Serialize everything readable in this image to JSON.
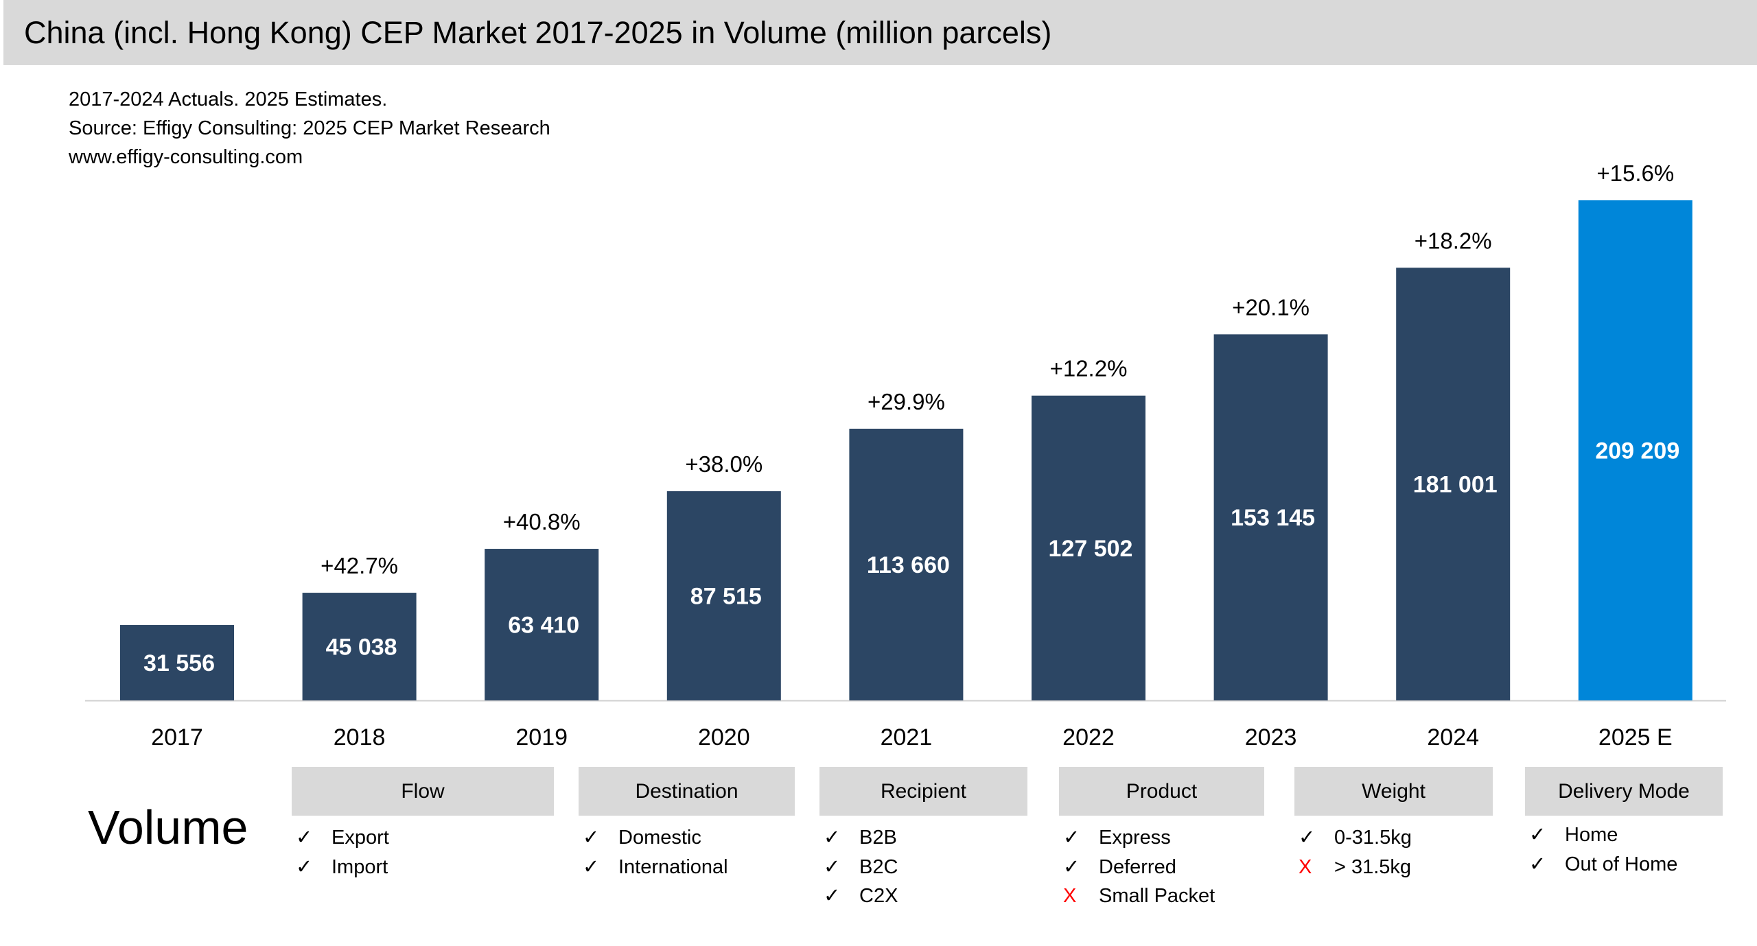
{
  "header": {
    "title": "China (incl. Hong Kong) CEP Market 2017-2025 in Volume (million parcels)",
    "notes": [
      "2017-2024 Actuals. 2025 Estimates.",
      "Source: Effigy Consulting: 2025 CEP Market Research",
      "www.effigy-consulting.com"
    ]
  },
  "chart_data": {
    "type": "bar",
    "title": "China (incl. Hong Kong) CEP Market 2017-2025 in Volume (million parcels)",
    "categories": [
      "2017",
      "2018",
      "2019",
      "2020",
      "2021",
      "2022",
      "2023",
      "2024",
      "2025 E"
    ],
    "values": [
      31556,
      45038,
      63410,
      87515,
      113660,
      127502,
      153145,
      181001,
      209209
    ],
    "value_labels": [
      "31 556",
      "45 038",
      "63 410",
      "87 515",
      "113 660",
      "127 502",
      "153 145",
      "181 001",
      "209 209"
    ],
    "growth_labels": [
      "",
      "+42.7%",
      "+40.8%",
      "+38.0%",
      "+29.9%",
      "+12.2%",
      "+20.1%",
      "+18.2%",
      "+15.6%"
    ],
    "ylim": [
      0,
      209209
    ],
    "grid": false,
    "colors": {
      "actual": "#2c4664",
      "estimate": "#0086d9"
    }
  },
  "segments": {
    "label": "Volume",
    "categories": [
      {
        "name": "Flow",
        "items": [
          {
            "mark": "✓",
            "ok": true,
            "text": "Export"
          },
          {
            "mark": "✓",
            "ok": true,
            "text": "Import"
          }
        ]
      },
      {
        "name": "Destination",
        "items": [
          {
            "mark": "✓",
            "ok": true,
            "text": "Domestic"
          },
          {
            "mark": "✓",
            "ok": true,
            "text": "International"
          }
        ]
      },
      {
        "name": "Recipient",
        "items": [
          {
            "mark": "✓",
            "ok": true,
            "text": "B2B"
          },
          {
            "mark": "✓",
            "ok": true,
            "text": "B2C"
          },
          {
            "mark": "✓",
            "ok": true,
            "text": "C2X"
          }
        ]
      },
      {
        "name": "Product",
        "items": [
          {
            "mark": "✓",
            "ok": true,
            "text": "Express"
          },
          {
            "mark": "✓",
            "ok": true,
            "text": "Deferred"
          },
          {
            "mark": "X",
            "ok": false,
            "text": "Small Packet"
          }
        ]
      },
      {
        "name": "Weight",
        "items": [
          {
            "mark": "✓",
            "ok": true,
            "text": "0-31.5kg"
          },
          {
            "mark": "X",
            "ok": false,
            "text": "> 31.5kg"
          }
        ]
      },
      {
        "name": "Delivery Mode",
        "items": [
          {
            "mark": "✓",
            "ok": true,
            "text": "Home"
          },
          {
            "mark": "✓",
            "ok": true,
            "text": "Out of Home"
          }
        ]
      }
    ]
  }
}
